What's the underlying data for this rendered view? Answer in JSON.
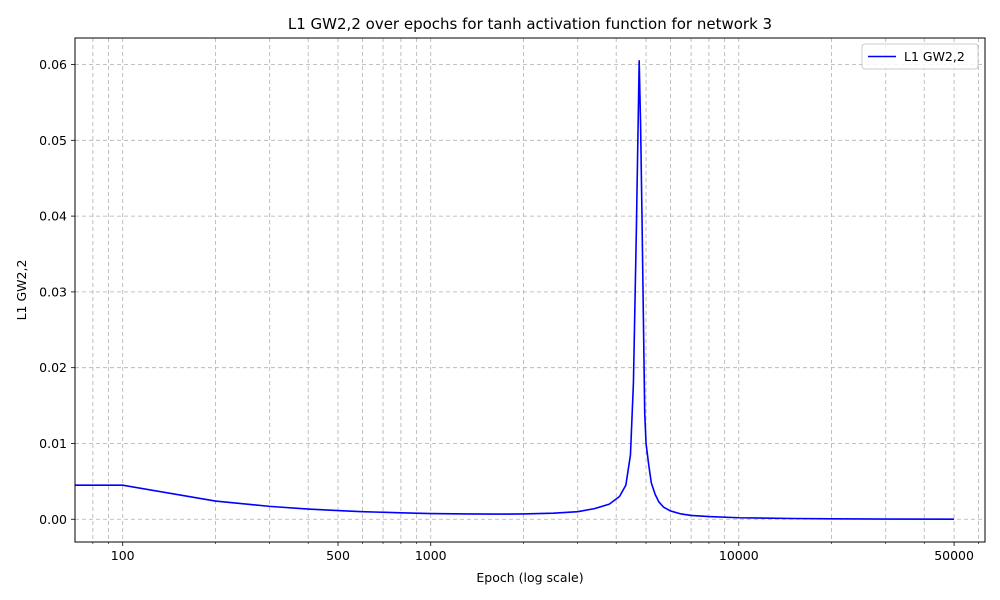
{
  "chart_data": {
    "type": "line",
    "title": "L1 GW2,2 over epochs for tanh activation function for network 3",
    "xlabel": "Epoch (log scale)",
    "ylabel": "L1 GW2,2",
    "xscale": "log",
    "xlim": [
      70,
      63000
    ],
    "ylim": [
      -0.003,
      0.0635
    ],
    "xticks": [
      100,
      500,
      1000,
      10000,
      50000
    ],
    "xtick_labels": [
      "100",
      "500",
      "1000",
      "10000",
      "50000"
    ],
    "yticks": [
      0.0,
      0.01,
      0.02,
      0.03,
      0.04,
      0.05,
      0.06
    ],
    "ytick_labels": [
      "0.00",
      "0.01",
      "0.02",
      "0.03",
      "0.04",
      "0.05",
      "0.06"
    ],
    "grid": true,
    "legend_position": "top-right",
    "series": [
      {
        "name": "L1 GW2,2",
        "color": "#0000ff",
        "x": [
          70,
          100,
          200,
          300,
          400,
          500,
          600,
          800,
          1000,
          1300,
          1600,
          2000,
          2500,
          3000,
          3400,
          3800,
          4100,
          4300,
          4450,
          4550,
          4650,
          4750,
          4800,
          4850,
          4900,
          4950,
          5000,
          5100,
          5200,
          5350,
          5500,
          5700,
          6000,
          6500,
          7000,
          8000,
          10000,
          15000,
          20000,
          30000,
          50000
        ],
        "values": [
          0.0045,
          0.0045,
          0.0024,
          0.0017,
          0.00135,
          0.00115,
          0.001,
          0.00085,
          0.00075,
          0.0007,
          0.00068,
          0.0007,
          0.0008,
          0.001,
          0.0014,
          0.002,
          0.003,
          0.0045,
          0.0085,
          0.018,
          0.038,
          0.0605,
          0.052,
          0.04,
          0.027,
          0.014,
          0.01,
          0.0072,
          0.0048,
          0.0033,
          0.0023,
          0.0016,
          0.0011,
          0.0007,
          0.0005,
          0.00035,
          0.0002,
          0.0001,
          6e-05,
          3e-05,
          1e-05
        ]
      }
    ]
  }
}
